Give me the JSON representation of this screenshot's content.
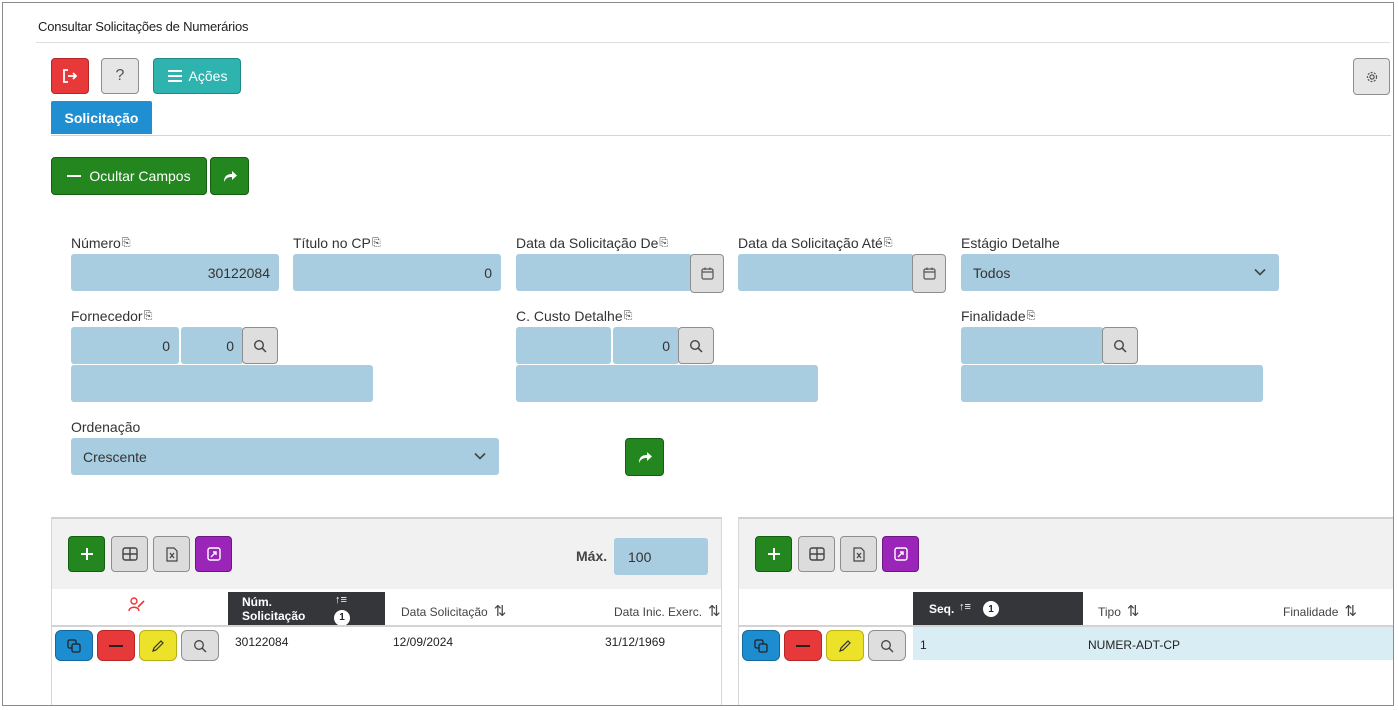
{
  "page": {
    "title": "Consultar Solicitações de Numerários"
  },
  "toolbar": {
    "acoes_label": "Ações",
    "help_label": "?"
  },
  "tabs": [
    {
      "label": "Solicitação",
      "active": true
    }
  ],
  "filters": {
    "ocultar_label": "Ocultar Campos",
    "numero": {
      "label": "Número",
      "value": "30122084"
    },
    "titulo_cp": {
      "label": "Título no CP",
      "value": "0"
    },
    "data_de": {
      "label": "Data da Solicitação De",
      "value": ""
    },
    "data_ate": {
      "label": "Data da Solicitação Até",
      "value": ""
    },
    "estagio": {
      "label": "Estágio Detalhe",
      "value": "Todos"
    },
    "fornecedor": {
      "label": "Fornecedor",
      "code1": "0",
      "code2": "0",
      "name": ""
    },
    "custo": {
      "label": "C. Custo Detalhe",
      "code1": "",
      "code2": "0",
      "name": ""
    },
    "finalidade": {
      "label": "Finalidade",
      "code": "",
      "name": ""
    },
    "ordenacao": {
      "label": "Ordenação",
      "value": "Crescente"
    }
  },
  "left_grid": {
    "max_label": "Máx.",
    "max_value": "100",
    "columns": [
      "Núm. Solicitação",
      "Data Solicitação",
      "Data Inic. Exerc."
    ],
    "sort_badge": "1",
    "rows": [
      {
        "num": "30122084",
        "data": "12/09/2024",
        "inic": "31/12/1969"
      }
    ]
  },
  "right_grid": {
    "columns": [
      "Seq.",
      "Tipo",
      "Finalidade"
    ],
    "sort_badge": "1",
    "rows": [
      {
        "seq": "1",
        "tipo": "NUMER-ADT-CP",
        "finalidade": ""
      }
    ]
  },
  "colors": {
    "field_bg": "#a9cde0",
    "green": "#23861f",
    "red": "#e8393a",
    "teal": "#2fb3ae",
    "blue": "#1e8dd0",
    "yellow": "#ece22a",
    "purple": "#9b25b8",
    "header_dark": "#343639",
    "row_selected": "#d9edf4"
  }
}
